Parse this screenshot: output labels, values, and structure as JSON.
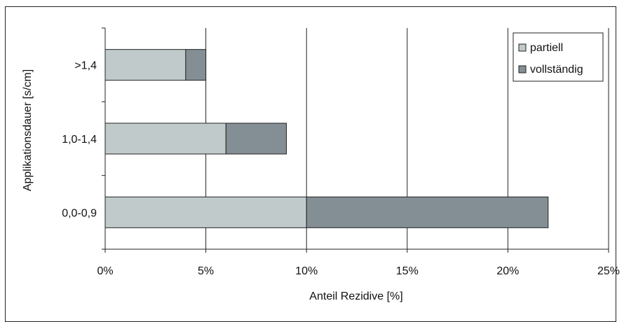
{
  "chart_data": {
    "type": "bar",
    "orientation": "horizontal",
    "stacked": true,
    "categories": [
      ">1,4",
      "1,0-1,4",
      "0,0-0,9"
    ],
    "series": [
      {
        "name": "partiell",
        "values": [
          4,
          6,
          10
        ],
        "color": "#c1cacb"
      },
      {
        "name": "vollständig",
        "values": [
          1,
          3,
          12
        ],
        "color": "#848f95"
      }
    ],
    "xlabel": "Anteil Rezidive [%]",
    "ylabel": "Applikationsdauer [s/cm]",
    "xlim": [
      0,
      25
    ],
    "xticks": [
      0,
      5,
      10,
      15,
      20,
      25
    ],
    "xtick_labels": [
      "0%",
      "5%",
      "10%",
      "15%",
      "20%",
      "25%"
    ],
    "grid": "vertical",
    "legend_position": "top-right"
  }
}
